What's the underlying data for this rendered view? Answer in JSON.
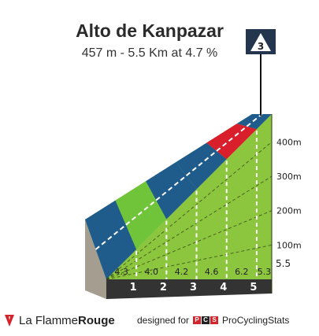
{
  "header": {
    "title": "Alto de Kanpazar",
    "subtitle": "457 m - 5.5 Km at 4.7 %",
    "category_badge": "3"
  },
  "chart_data": {
    "type": "area",
    "title": "Alto de Kanpazar",
    "subtitle": "457 m - 5.5 Km at 4.7 %",
    "x_unit": "km",
    "y_unit": "m",
    "x_ticks": [
      "1",
      "2",
      "3",
      "4",
      "5",
      "5.5"
    ],
    "y_ticks": [
      "100m",
      "200m",
      "300m",
      "400m"
    ],
    "ylim": [
      0,
      457
    ],
    "xlim": [
      0,
      5.5
    ],
    "segments": [
      {
        "x0": 0,
        "x1": 1,
        "gradient": "4.3",
        "value": 4.3,
        "road_color": "#1f5c8b"
      },
      {
        "x0": 1,
        "x1": 2,
        "gradient": "4.0",
        "value": 4.0,
        "road_color": "#6fc43a"
      },
      {
        "x0": 2,
        "x1": 3,
        "gradient": "4.2",
        "value": 4.2,
        "road_color": "#1f5c8b"
      },
      {
        "x0": 3,
        "x1": 4,
        "gradient": "4.6",
        "value": 4.6,
        "road_color": "#1f5c8b"
      },
      {
        "x0": 4,
        "x1": 5,
        "gradient": "6.2",
        "value": 6.2,
        "road_color": "#d91e2c"
      },
      {
        "x0": 5,
        "x1": 5.5,
        "gradient": "5.3",
        "value": 5.3,
        "road_color": "#1f5c8b"
      }
    ],
    "grid": true
  },
  "footer": {
    "brand_plain": "La Flamme",
    "brand_bold": "Rouge",
    "credit_prefix": "designed for",
    "credit_logo": [
      "P",
      "C",
      "S"
    ],
    "credit_site": "ProCyclingStats"
  },
  "colors": {
    "face": "#8cc63f",
    "side": "#a59d90",
    "base": "#333333",
    "badge": "#24364d",
    "flame": "#d6222a"
  }
}
